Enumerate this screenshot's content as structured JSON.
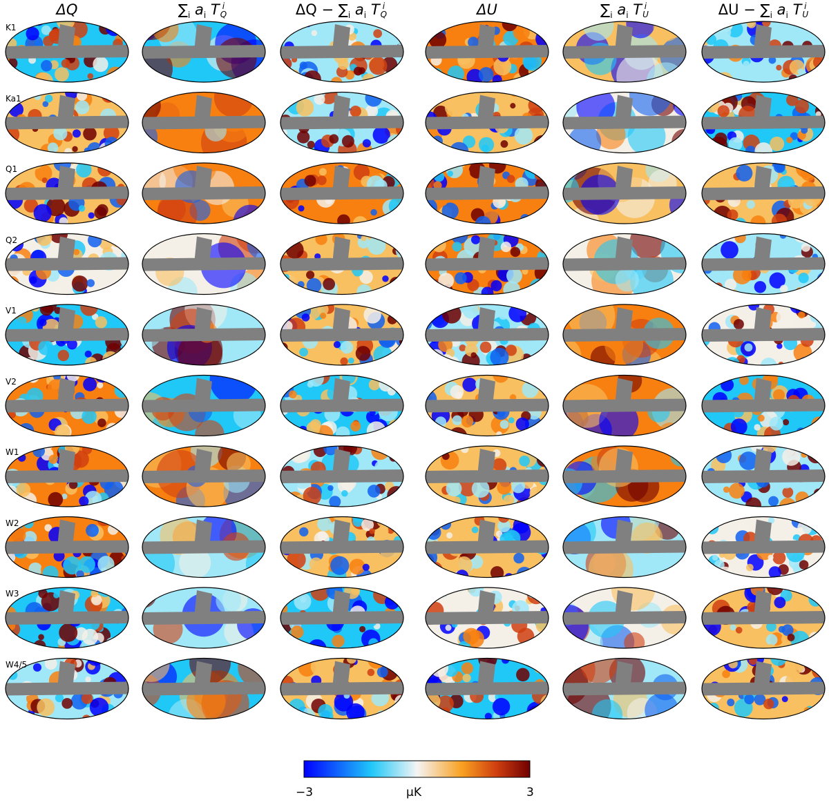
{
  "figure": {
    "headers": [
      [
        "ΔQ"
      ],
      [
        "∑",
        "i",
        "a",
        "i",
        "T",
        "i",
        "Q"
      ],
      [
        "ΔQ − ∑",
        "i",
        "a",
        "i",
        "T",
        "i",
        "Q"
      ],
      [
        "ΔU"
      ],
      [
        "∑",
        "i",
        "a",
        "i",
        "T",
        "i",
        "U"
      ],
      [
        "ΔU − ∑",
        "i",
        "a",
        "i",
        "T",
        "i",
        "U"
      ]
    ],
    "rows": [
      "K1",
      "Ka1",
      "Q1",
      "Q2",
      "V1",
      "V2",
      "W1",
      "W2",
      "W3",
      "W4/5"
    ],
    "colorbar": {
      "min_label": "−3",
      "unit": "μK",
      "max_label": "3"
    }
  }
}
